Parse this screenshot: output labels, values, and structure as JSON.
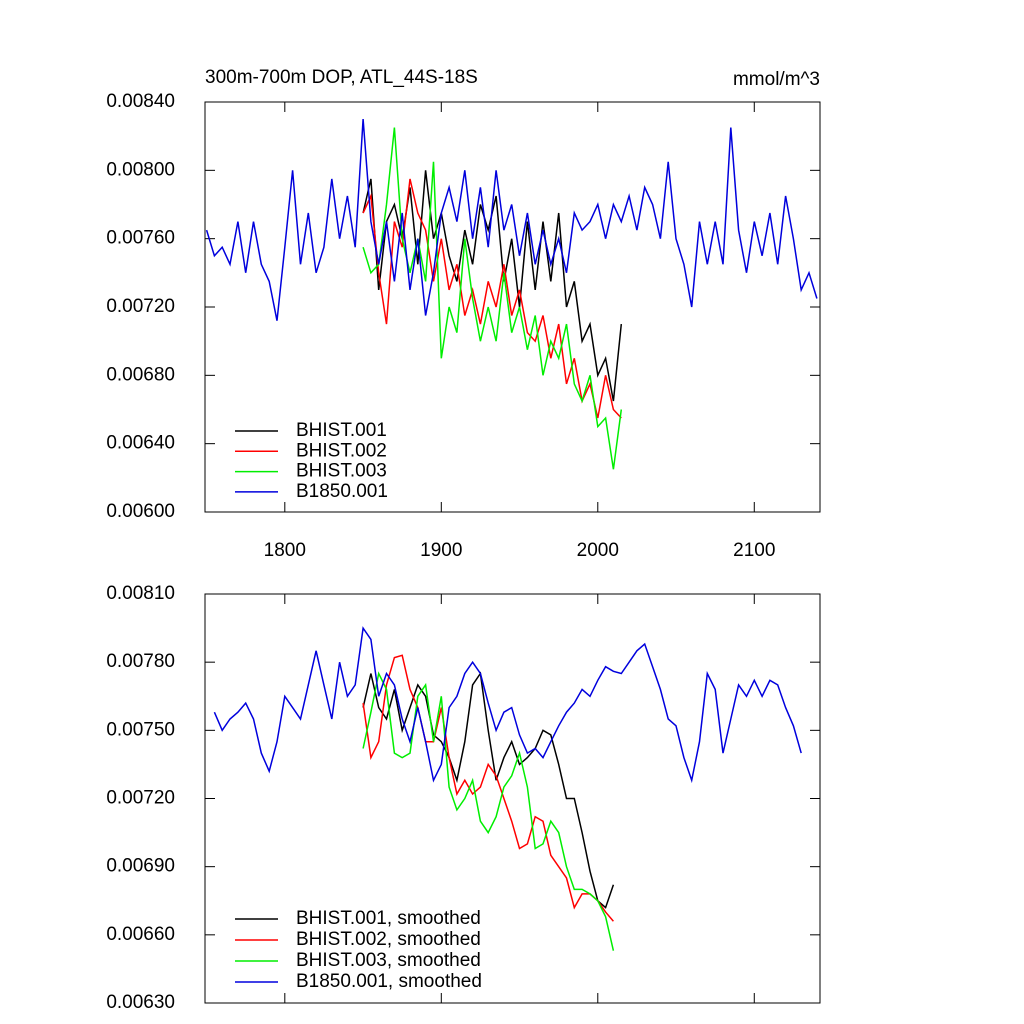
{
  "chart_data": [
    {
      "type": "line",
      "title": "300m-700m DOP, ATL_44S-18S",
      "units": "mmol/m^3",
      "xlim": [
        1749,
        2142
      ],
      "xticks": [
        1800,
        1900,
        2000,
        2100
      ],
      "xtick_labels": true,
      "ylim": [
        0.006,
        0.0084
      ],
      "yticks": [
        {
          "value": 0.006,
          "label": "0.00600"
        },
        {
          "value": 0.0064,
          "label": "0.00640"
        },
        {
          "value": 0.0068,
          "label": "0.00680"
        },
        {
          "value": 0.0072,
          "label": "0.00720"
        },
        {
          "value": 0.0076,
          "label": "0.00760"
        },
        {
          "value": 0.008,
          "label": "0.00800"
        },
        {
          "value": 0.0084,
          "label": "0.00840"
        }
      ],
      "legend": "lower left",
      "series": [
        {
          "name": "BHIST.001",
          "color": "#000000",
          "x": [
            1850,
            1855,
            1860,
            1865,
            1870,
            1875,
            1880,
            1885,
            1890,
            1895,
            1900,
            1905,
            1910,
            1915,
            1920,
            1925,
            1930,
            1935,
            1940,
            1945,
            1950,
            1955,
            1960,
            1965,
            1970,
            1975,
            1980,
            1985,
            1990,
            1995,
            2000,
            2005,
            2010,
            2015
          ],
          "values": [
            0.00775,
            0.00795,
            0.0073,
            0.0077,
            0.0078,
            0.0076,
            0.0079,
            0.00745,
            0.008,
            0.0076,
            0.00775,
            0.0075,
            0.00735,
            0.00765,
            0.00745,
            0.0078,
            0.00765,
            0.00785,
            0.00735,
            0.0076,
            0.0072,
            0.0077,
            0.0073,
            0.0077,
            0.00735,
            0.00775,
            0.0072,
            0.00735,
            0.007,
            0.0071,
            0.0068,
            0.0069,
            0.00665,
            0.0071
          ]
        },
        {
          "name": "BHIST.002",
          "color": "#ff0000",
          "x": [
            1850,
            1855,
            1860,
            1865,
            1870,
            1875,
            1880,
            1885,
            1890,
            1895,
            1900,
            1905,
            1910,
            1915,
            1920,
            1925,
            1930,
            1935,
            1940,
            1945,
            1950,
            1955,
            1960,
            1965,
            1970,
            1975,
            1980,
            1985,
            1990,
            1995,
            2000,
            2005,
            2010,
            2015
          ],
          "values": [
            0.00775,
            0.00785,
            0.0074,
            0.0071,
            0.0077,
            0.00755,
            0.00795,
            0.00775,
            0.00765,
            0.00735,
            0.0076,
            0.0073,
            0.00745,
            0.00715,
            0.0073,
            0.0071,
            0.00735,
            0.0072,
            0.00745,
            0.00715,
            0.0073,
            0.00705,
            0.007,
            0.00715,
            0.0069,
            0.0071,
            0.00675,
            0.0069,
            0.00665,
            0.00675,
            0.00655,
            0.0068,
            0.0066,
            0.00655
          ]
        },
        {
          "name": "BHIST.003",
          "color": "#00ee00",
          "x": [
            1850,
            1855,
            1860,
            1865,
            1870,
            1875,
            1880,
            1885,
            1890,
            1895,
            1900,
            1905,
            1910,
            1915,
            1920,
            1925,
            1930,
            1935,
            1940,
            1945,
            1950,
            1955,
            1960,
            1965,
            1970,
            1975,
            1980,
            1985,
            1990,
            1995,
            2000,
            2005,
            2010,
            2015
          ],
          "values": [
            0.00755,
            0.0074,
            0.00745,
            0.0078,
            0.00825,
            0.0076,
            0.0074,
            0.0076,
            0.00735,
            0.00805,
            0.0069,
            0.0072,
            0.00705,
            0.0076,
            0.00725,
            0.007,
            0.0072,
            0.007,
            0.0074,
            0.00705,
            0.0072,
            0.00695,
            0.00715,
            0.0068,
            0.007,
            0.0069,
            0.0071,
            0.00675,
            0.00665,
            0.0068,
            0.0065,
            0.00655,
            0.00625,
            0.0066
          ]
        },
        {
          "name": "B1850.001",
          "color": "#0000dd",
          "x": [
            1750,
            1755,
            1760,
            1765,
            1770,
            1775,
            1780,
            1785,
            1790,
            1795,
            1800,
            1805,
            1810,
            1815,
            1820,
            1825,
            1830,
            1835,
            1840,
            1845,
            1850,
            1855,
            1860,
            1865,
            1870,
            1875,
            1880,
            1885,
            1890,
            1895,
            1900,
            1905,
            1910,
            1915,
            1920,
            1925,
            1930,
            1935,
            1940,
            1945,
            1950,
            1955,
            1960,
            1965,
            1970,
            1975,
            1980,
            1985,
            1990,
            1995,
            2000,
            2005,
            2010,
            2015,
            2020,
            2025,
            2030,
            2035,
            2040,
            2045,
            2050,
            2055,
            2060,
            2065,
            2070,
            2075,
            2080,
            2085,
            2090,
            2095,
            2100,
            2105,
            2110,
            2115,
            2120,
            2125,
            2130,
            2135,
            2140
          ],
          "values": [
            0.00765,
            0.0075,
            0.00755,
            0.00745,
            0.0077,
            0.0074,
            0.0077,
            0.00745,
            0.00735,
            0.00712,
            0.00755,
            0.008,
            0.00745,
            0.00775,
            0.0074,
            0.00755,
            0.00795,
            0.0076,
            0.00785,
            0.00755,
            0.0083,
            0.0077,
            0.00745,
            0.0077,
            0.00735,
            0.00775,
            0.0073,
            0.0076,
            0.00715,
            0.0074,
            0.00775,
            0.0079,
            0.0077,
            0.008,
            0.0076,
            0.0079,
            0.00755,
            0.008,
            0.00765,
            0.0078,
            0.0075,
            0.00775,
            0.00745,
            0.00765,
            0.00745,
            0.0076,
            0.0074,
            0.00775,
            0.00765,
            0.0077,
            0.0078,
            0.0076,
            0.0078,
            0.0077,
            0.00785,
            0.00765,
            0.0079,
            0.0078,
            0.0076,
            0.00805,
            0.0076,
            0.00745,
            0.0072,
            0.0077,
            0.00745,
            0.0077,
            0.00745,
            0.00825,
            0.00765,
            0.0074,
            0.0077,
            0.0075,
            0.00775,
            0.00745,
            0.00785,
            0.0076,
            0.0073,
            0.0074,
            0.00725
          ]
        }
      ]
    },
    {
      "type": "line",
      "xlim": [
        1749,
        2142
      ],
      "xticks": [
        1800,
        1900,
        2000,
        2100
      ],
      "xtick_labels": false,
      "ylim": [
        0.0063,
        0.0081
      ],
      "yticks": [
        {
          "value": 0.0063,
          "label": "0.00630"
        },
        {
          "value": 0.0066,
          "label": "0.00660"
        },
        {
          "value": 0.0069,
          "label": "0.00690"
        },
        {
          "value": 0.0072,
          "label": "0.00720"
        },
        {
          "value": 0.0075,
          "label": "0.00750"
        },
        {
          "value": 0.0078,
          "label": "0.00780"
        },
        {
          "value": 0.0081,
          "label": "0.00810"
        }
      ],
      "legend": "lower left",
      "series": [
        {
          "name": "BHIST.001, smoothed",
          "color": "#000000",
          "x": [
            1850,
            1855,
            1860,
            1865,
            1870,
            1875,
            1880,
            1885,
            1890,
            1895,
            1900,
            1905,
            1910,
            1915,
            1920,
            1925,
            1930,
            1935,
            1940,
            1945,
            1950,
            1955,
            1960,
            1965,
            1970,
            1975,
            1980,
            1985,
            1990,
            1995,
            2000,
            2005,
            2010
          ],
          "values": [
            0.0076,
            0.00775,
            0.0076,
            0.00755,
            0.00768,
            0.0075,
            0.0076,
            0.0077,
            0.00765,
            0.00748,
            0.00745,
            0.00738,
            0.00728,
            0.00745,
            0.0077,
            0.00775,
            0.0075,
            0.00728,
            0.00738,
            0.00745,
            0.00735,
            0.00738,
            0.00742,
            0.0075,
            0.00748,
            0.00735,
            0.0072,
            0.0072,
            0.00705,
            0.00688,
            0.00675,
            0.00672,
            0.00682
          ]
        },
        {
          "name": "BHIST.002, smoothed",
          "color": "#ff0000",
          "x": [
            1850,
            1855,
            1860,
            1865,
            1870,
            1875,
            1880,
            1885,
            1890,
            1895,
            1900,
            1905,
            1910,
            1915,
            1920,
            1925,
            1930,
            1935,
            1940,
            1945,
            1950,
            1955,
            1960,
            1965,
            1970,
            1975,
            1980,
            1985,
            1990,
            1995,
            2000,
            2005,
            2010
          ],
          "values": [
            0.00762,
            0.00738,
            0.00745,
            0.0077,
            0.00782,
            0.00783,
            0.00768,
            0.0076,
            0.00745,
            0.00745,
            0.0076,
            0.00738,
            0.00722,
            0.00728,
            0.00722,
            0.00725,
            0.00735,
            0.0073,
            0.0072,
            0.0071,
            0.00698,
            0.007,
            0.00712,
            0.0071,
            0.00695,
            0.0069,
            0.00685,
            0.00672,
            0.00678,
            0.00678,
            0.00675,
            0.0067,
            0.00666
          ]
        },
        {
          "name": "BHIST.003, smoothed",
          "color": "#00ee00",
          "x": [
            1850,
            1855,
            1860,
            1865,
            1870,
            1875,
            1880,
            1885,
            1890,
            1895,
            1900,
            1905,
            1910,
            1915,
            1920,
            1925,
            1930,
            1935,
            1940,
            1945,
            1950,
            1955,
            1960,
            1965,
            1970,
            1975,
            1980,
            1985,
            1990,
            1995,
            2000,
            2005,
            2010
          ],
          "values": [
            0.00742,
            0.00758,
            0.00775,
            0.00768,
            0.0074,
            0.00738,
            0.0074,
            0.00765,
            0.0077,
            0.00745,
            0.00765,
            0.00725,
            0.00715,
            0.0072,
            0.00728,
            0.0071,
            0.00705,
            0.00712,
            0.00725,
            0.0073,
            0.0074,
            0.00725,
            0.00698,
            0.007,
            0.0071,
            0.00705,
            0.0069,
            0.0068,
            0.0068,
            0.00678,
            0.00675,
            0.00668,
            0.00653
          ]
        },
        {
          "name": "B1850.001, smoothed",
          "color": "#0000dd",
          "x": [
            1755,
            1760,
            1765,
            1770,
            1775,
            1780,
            1785,
            1790,
            1795,
            1800,
            1805,
            1810,
            1815,
            1820,
            1825,
            1830,
            1835,
            1840,
            1845,
            1850,
            1855,
            1860,
            1865,
            1870,
            1875,
            1880,
            1885,
            1890,
            1895,
            1900,
            1905,
            1910,
            1915,
            1920,
            1925,
            1930,
            1935,
            1940,
            1945,
            1950,
            1955,
            1960,
            1965,
            1970,
            1975,
            1980,
            1985,
            1990,
            1995,
            2000,
            2005,
            2010,
            2015,
            2020,
            2025,
            2030,
            2035,
            2040,
            2045,
            2050,
            2055,
            2060,
            2065,
            2070,
            2075,
            2080,
            2085,
            2090,
            2095,
            2100,
            2105,
            2110,
            2115,
            2120,
            2125,
            2130
          ],
          "values": [
            0.00758,
            0.0075,
            0.00755,
            0.00758,
            0.00762,
            0.00755,
            0.0074,
            0.00732,
            0.00745,
            0.00765,
            0.0076,
            0.00755,
            0.0077,
            0.00785,
            0.0077,
            0.00755,
            0.0078,
            0.00765,
            0.0077,
            0.00795,
            0.0079,
            0.00765,
            0.00775,
            0.0077,
            0.00755,
            0.00745,
            0.0076,
            0.00745,
            0.00728,
            0.00735,
            0.0076,
            0.00765,
            0.00775,
            0.0078,
            0.00775,
            0.00762,
            0.0075,
            0.00758,
            0.0076,
            0.00748,
            0.0074,
            0.00742,
            0.00738,
            0.00745,
            0.00752,
            0.00758,
            0.00762,
            0.00768,
            0.00765,
            0.00772,
            0.00778,
            0.00776,
            0.00775,
            0.0078,
            0.00785,
            0.00788,
            0.00778,
            0.00768,
            0.00755,
            0.00752,
            0.00738,
            0.00728,
            0.00745,
            0.00775,
            0.00768,
            0.0074,
            0.00755,
            0.0077,
            0.00765,
            0.00772,
            0.00765,
            0.00772,
            0.0077,
            0.0076,
            0.00752,
            0.0074
          ]
        }
      ]
    }
  ]
}
